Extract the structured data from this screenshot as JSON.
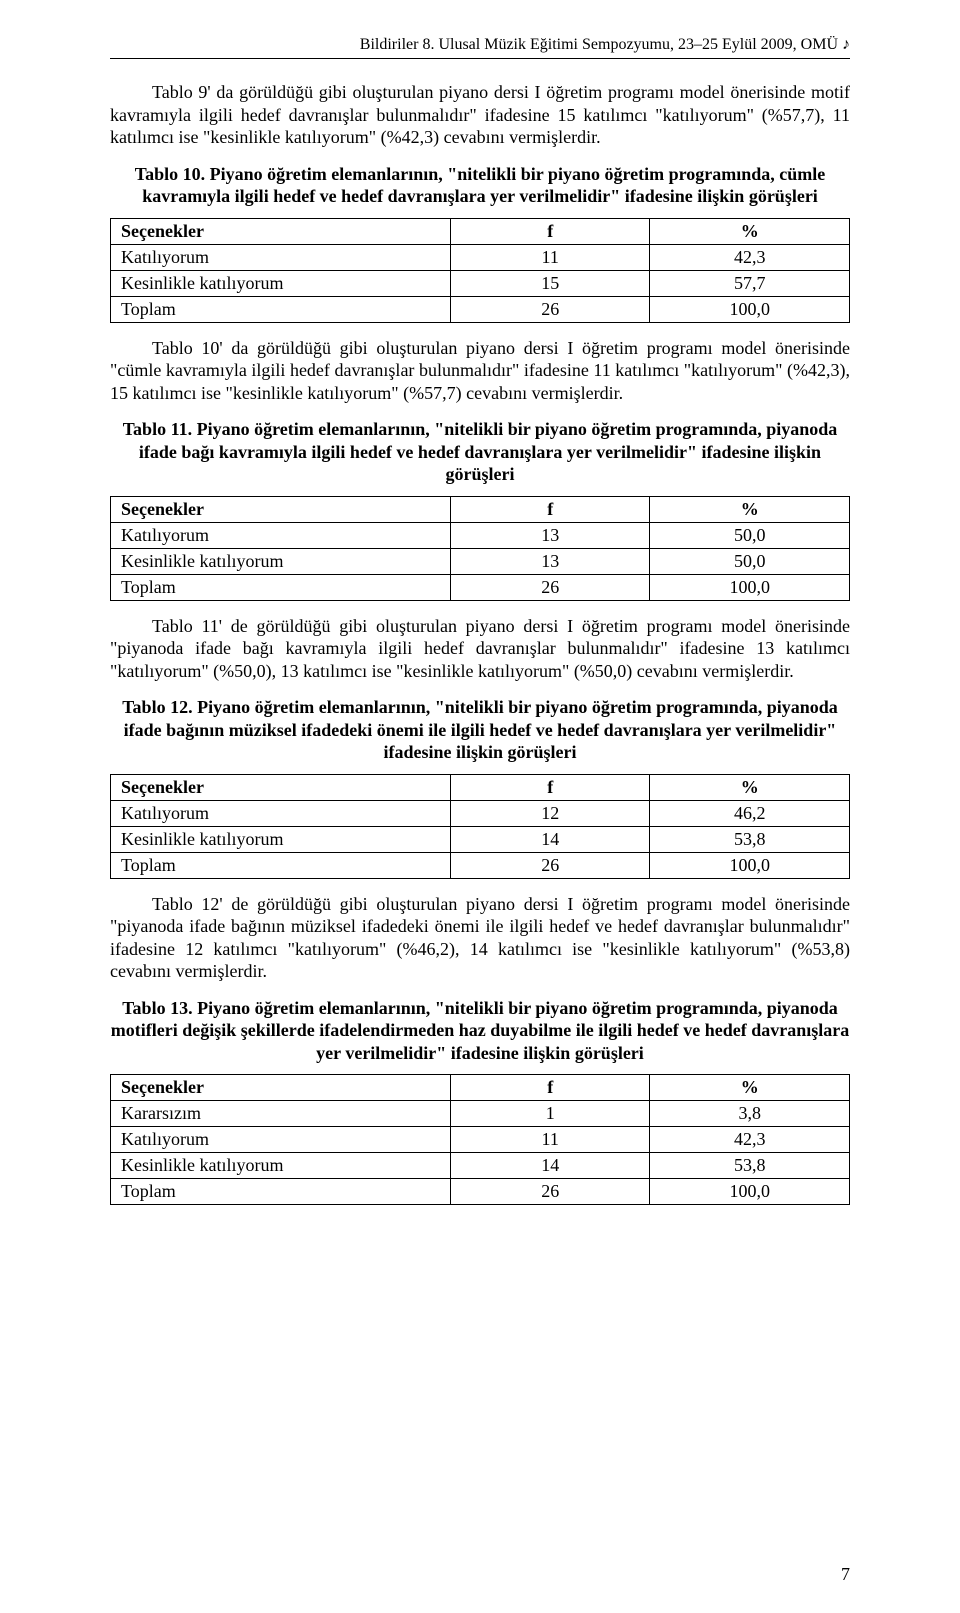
{
  "header": {
    "text": "Bildiriler 8. Ulusal Müzik Eğitimi Sempozyumu, 23–25 Eylül 2009, OMÜ",
    "note_symbol": "♪"
  },
  "para1": "Tablo 9' da görüldüğü gibi oluşturulan piyano dersi I öğretim programı model önerisinde motif kavramıyla ilgili hedef davranışlar bulunmalıdır\" ifadesine 15 katılımcı \"katılıyorum\" (%57,7), 11 katılımcı ise \"kesinlikle katılıyorum\" (%42,3) cevabını vermişlerdir.",
  "table10": {
    "caption_lead": "Tablo 10.",
    "caption_rest": " Piyano öğretim elemanlarının, \"nitelikli bir piyano öğretim programında, cümle kavramıyla ilgili  hedef ve hedef davranışlara yer verilmelidir\" ifadesine ilişkin görüşleri",
    "columns": [
      "Seçenekler",
      "f",
      "%"
    ],
    "rows": [
      [
        "Katılıyorum",
        "11",
        "42,3"
      ],
      [
        "Kesinlikle katılıyorum",
        "15",
        "57,7"
      ],
      [
        "Toplam",
        "26",
        "100,0"
      ]
    ]
  },
  "para2": "Tablo 10' da görüldüğü gibi oluşturulan piyano dersi I öğretim programı model önerisinde \"cümle kavramıyla ilgili hedef davranışlar bulunmalıdır\" ifadesine 11 katılımcı \"katılıyorum\" (%42,3), 15 katılımcı ise \"kesinlikle katılıyorum\" (%57,7) cevabını vermişlerdir.",
  "table11": {
    "caption_lead": "Tablo 11.",
    "caption_rest": " Piyano öğretim elemanlarının, \"nitelikli bir piyano öğretim programında, piyanoda ifade bağı kavramıyla ilgili  hedef ve hedef davranışlara yer verilmelidir\" ifadesine ilişkin görüşleri",
    "columns": [
      "Seçenekler",
      "f",
      "%"
    ],
    "rows": [
      [
        "Katılıyorum",
        "13",
        "50,0"
      ],
      [
        "Kesinlikle katılıyorum",
        "13",
        "50,0"
      ],
      [
        "Toplam",
        "26",
        "100,0"
      ]
    ]
  },
  "para3": "Tablo 11' de görüldüğü gibi oluşturulan piyano dersi I öğretim programı model önerisinde \"piyanoda ifade bağı  kavramıyla ilgili hedef davranışlar bulunmalıdır\" ifadesine 13 katılımcı \"katılıyorum\" (%50,0), 13 katılımcı ise \"kesinlikle katılıyorum\" (%50,0) cevabını vermişlerdir.",
  "table12": {
    "caption_lead": "Tablo 12.",
    "caption_rest": " Piyano öğretim elemanlarının, \"nitelikli bir piyano öğretim programında, piyanoda ifade bağının müziksel ifadedeki önemi ile ilgili  hedef ve hedef davranışlara yer verilmelidir\" ifadesine ilişkin görüşleri",
    "columns": [
      "Seçenekler",
      "f",
      "%"
    ],
    "rows": [
      [
        "Katılıyorum",
        "12",
        "46,2"
      ],
      [
        "Kesinlikle katılıyorum",
        "14",
        "53,8"
      ],
      [
        "Toplam",
        "26",
        "100,0"
      ]
    ]
  },
  "para4": "Tablo 12' de görüldüğü gibi oluşturulan piyano dersi I öğretim programı model önerisinde \"piyanoda ifade bağının müziksel ifadedeki önemi ile ilgili hedef ve hedef davranışlar bulunmalıdır\" ifadesine 12 katılımcı \"katılıyorum\" (%46,2), 14 katılımcı ise \"kesinlikle katılıyorum\" (%53,8) cevabını vermişlerdir.",
  "table13": {
    "caption_lead": "Tablo 13.",
    "caption_rest": " Piyano öğretim elemanlarının, \"nitelikli bir piyano öğretim programında, piyanoda motifleri değişik şekillerde ifadelendirmeden haz duyabilme  ile ilgili  hedef ve hedef davranışlara yer verilmelidir\" ifadesine ilişkin görüşleri",
    "columns": [
      "Seçenekler",
      "f",
      "%"
    ],
    "rows": [
      [
        "Kararsızım",
        "1",
        "3,8"
      ],
      [
        "Katılıyorum",
        "11",
        "42,3"
      ],
      [
        "Kesinlikle katılıyorum",
        "14",
        "53,8"
      ],
      [
        "Toplam",
        "26",
        "100,0"
      ]
    ]
  },
  "page_number": "7"
}
